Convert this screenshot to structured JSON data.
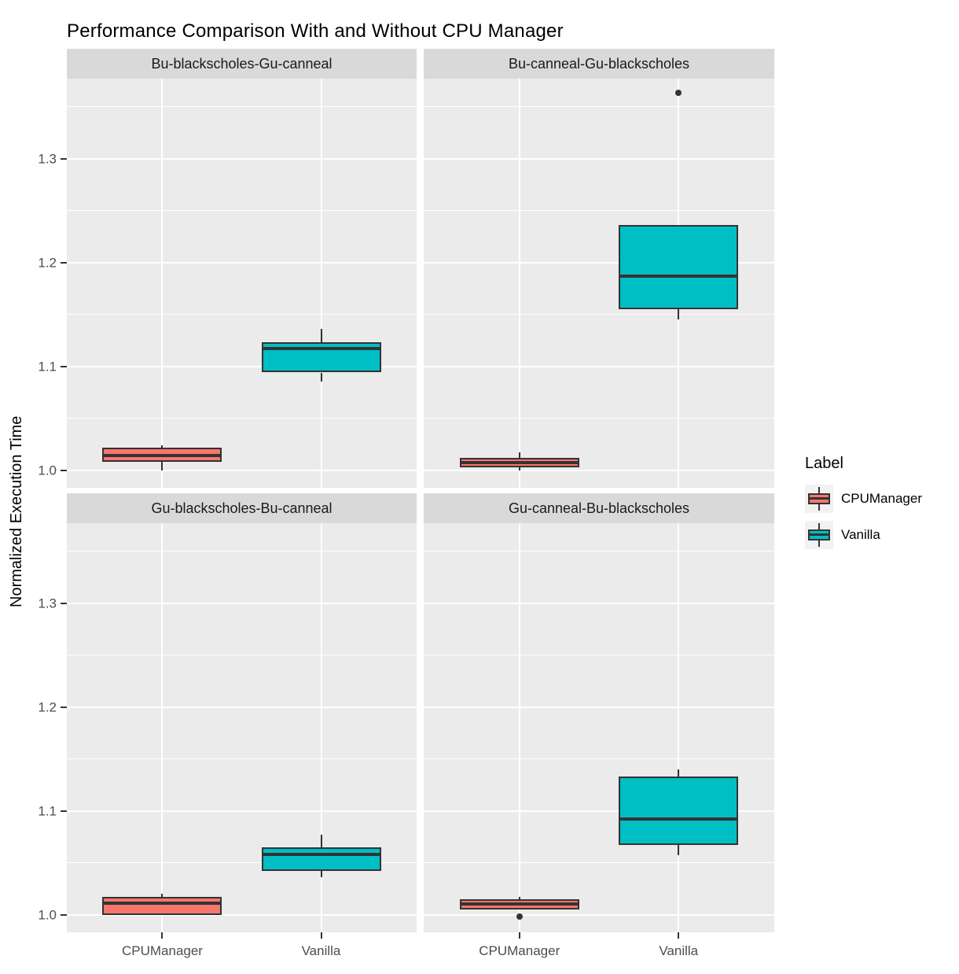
{
  "title": "Performance Comparison With and Without CPU Manager",
  "y_axis": {
    "label": "Normalized Execution Time",
    "ticks": [
      "1.0",
      "1.1",
      "1.2",
      "1.3"
    ],
    "tick_values": [
      1.0,
      1.1,
      1.2,
      1.3
    ],
    "minor_tick_values": [
      1.05,
      1.15,
      1.25,
      1.35
    ],
    "domain": [
      0.983,
      1.377
    ]
  },
  "x_axis": {
    "categories": [
      "CPUManager",
      "Vanilla"
    ]
  },
  "legend": {
    "title": "Label",
    "entries": [
      {
        "label": "CPUManager",
        "color": "#F8766D"
      },
      {
        "label": "Vanilla",
        "color": "#00BFC4"
      }
    ]
  },
  "colors": {
    "panel_background": "#EBEBEB",
    "strip_background": "#D9D9D9",
    "gridline": "#FFFFFF",
    "box_outline": "#333333",
    "tick_text": "#4D4D4D",
    "cpumanager_fill": "#F8766D",
    "vanilla_fill": "#00BFC4"
  },
  "chart_data": {
    "type": "boxplot",
    "facet_layout": "2x2",
    "ylabel": "Normalized Execution Time",
    "ylim": [
      0.983,
      1.377
    ],
    "grid": true,
    "legend_position": "right",
    "facets": [
      {
        "label": "Bu-blackscholes-Gu-canneal",
        "row": 0,
        "col": 0,
        "boxes": [
          {
            "group": "CPUManager",
            "min": 1.0,
            "q1": 1.008,
            "median": 1.014,
            "q3": 1.022,
            "max": 1.024,
            "outliers": []
          },
          {
            "group": "Vanilla",
            "min": 1.085,
            "q1": 1.094,
            "median": 1.117,
            "q3": 1.123,
            "max": 1.136,
            "outliers": []
          }
        ]
      },
      {
        "label": "Bu-canneal-Gu-blackscholes",
        "row": 0,
        "col": 1,
        "boxes": [
          {
            "group": "CPUManager",
            "min": 1.0,
            "q1": 1.003,
            "median": 1.007,
            "q3": 1.012,
            "max": 1.017,
            "outliers": []
          },
          {
            "group": "Vanilla",
            "min": 1.145,
            "q1": 1.155,
            "median": 1.187,
            "q3": 1.236,
            "max": 1.236,
            "outliers": [
              1.363
            ]
          }
        ]
      },
      {
        "label": "Gu-blackscholes-Bu-canneal",
        "row": 1,
        "col": 0,
        "boxes": [
          {
            "group": "CPUManager",
            "min": 1.0,
            "q1": 1.0,
            "median": 1.011,
            "q3": 1.017,
            "max": 1.02,
            "outliers": []
          },
          {
            "group": "Vanilla",
            "min": 1.036,
            "q1": 1.042,
            "median": 1.058,
            "q3": 1.065,
            "max": 1.077,
            "outliers": []
          }
        ]
      },
      {
        "label": "Gu-canneal-Bu-blackscholes",
        "row": 1,
        "col": 1,
        "boxes": [
          {
            "group": "CPUManager",
            "min": 1.005,
            "q1": 1.005,
            "median": 1.01,
            "q3": 1.015,
            "max": 1.017,
            "outliers": [
              0.998
            ]
          },
          {
            "group": "Vanilla",
            "min": 1.057,
            "q1": 1.067,
            "median": 1.092,
            "q3": 1.133,
            "max": 1.14,
            "outliers": []
          }
        ]
      }
    ]
  }
}
